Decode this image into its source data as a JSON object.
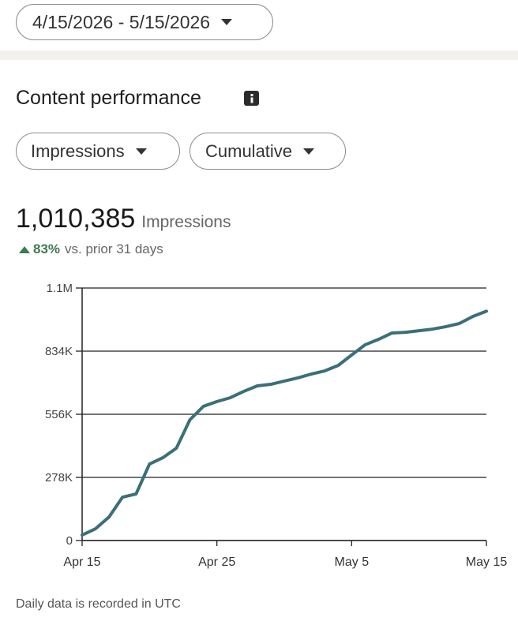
{
  "date_range": "4/15/2026 - 5/15/2026",
  "section_title": "Content performance",
  "filters": [
    "Impressions",
    "Cumulative"
  ],
  "summary": {
    "total": "1,010,385",
    "unit": "Impressions",
    "change": "83%",
    "comparison": "vs. prior 31 days"
  },
  "chart_data": {
    "type": "line",
    "categories": [
      "Apr 15",
      null,
      null,
      null,
      null,
      null,
      null,
      null,
      null,
      null,
      "Apr 25",
      null,
      null,
      null,
      null,
      null,
      null,
      null,
      null,
      null,
      "May 5",
      null,
      null,
      null,
      null,
      null,
      null,
      null,
      null,
      null,
      "May 15"
    ],
    "values": [
      24000,
      52000,
      104000,
      191000,
      205000,
      337000,
      365000,
      407000,
      532000,
      591000,
      612000,
      629000,
      657000,
      681000,
      688000,
      702000,
      716000,
      733000,
      747000,
      771000,
      817000,
      862000,
      886000,
      914000,
      917000,
      924000,
      931000,
      942000,
      956000,
      987000,
      1010000
    ],
    "color": "#3b6f79",
    "ylim": [
      0,
      1112000
    ],
    "yticks": [
      0,
      {
        "value": 278000,
        "label": "278K"
      },
      {
        "value": 556000,
        "label": "556K"
      },
      {
        "value": 834000,
        "label": "834K"
      },
      {
        "value": 1112000,
        "label": "1.1M"
      }
    ],
    "grid": true
  },
  "footnote": "Daily data is recorded in UTC"
}
